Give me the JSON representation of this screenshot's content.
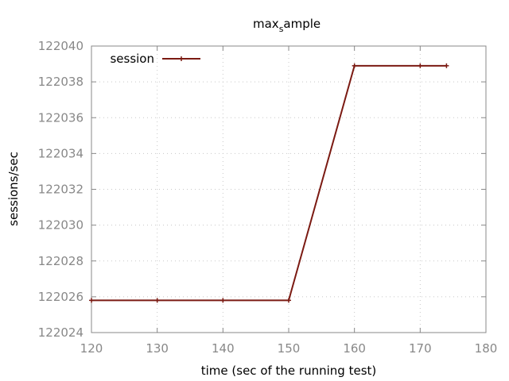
{
  "chart_data": {
    "type": "line",
    "title": "max",
    "title_sub": "s",
    "title_rest": "ample",
    "xlabel": "time (sec of the running test)",
    "ylabel": "sessions/sec",
    "xlim": [
      120,
      180
    ],
    "ylim": [
      122024,
      122040
    ],
    "xticks": [
      120,
      130,
      140,
      150,
      160,
      170,
      180
    ],
    "yticks": [
      122024,
      122026,
      122028,
      122030,
      122032,
      122034,
      122036,
      122038,
      122040
    ],
    "grid": true,
    "legend_position": "top-left",
    "series": [
      {
        "name": "session",
        "color": "#7b1a12",
        "x": [
          120,
          130,
          140,
          150,
          160,
          170,
          174
        ],
        "y": [
          122025.8,
          122025.8,
          122025.8,
          122025.8,
          122038.9,
          122038.9,
          122038.9
        ]
      }
    ]
  }
}
